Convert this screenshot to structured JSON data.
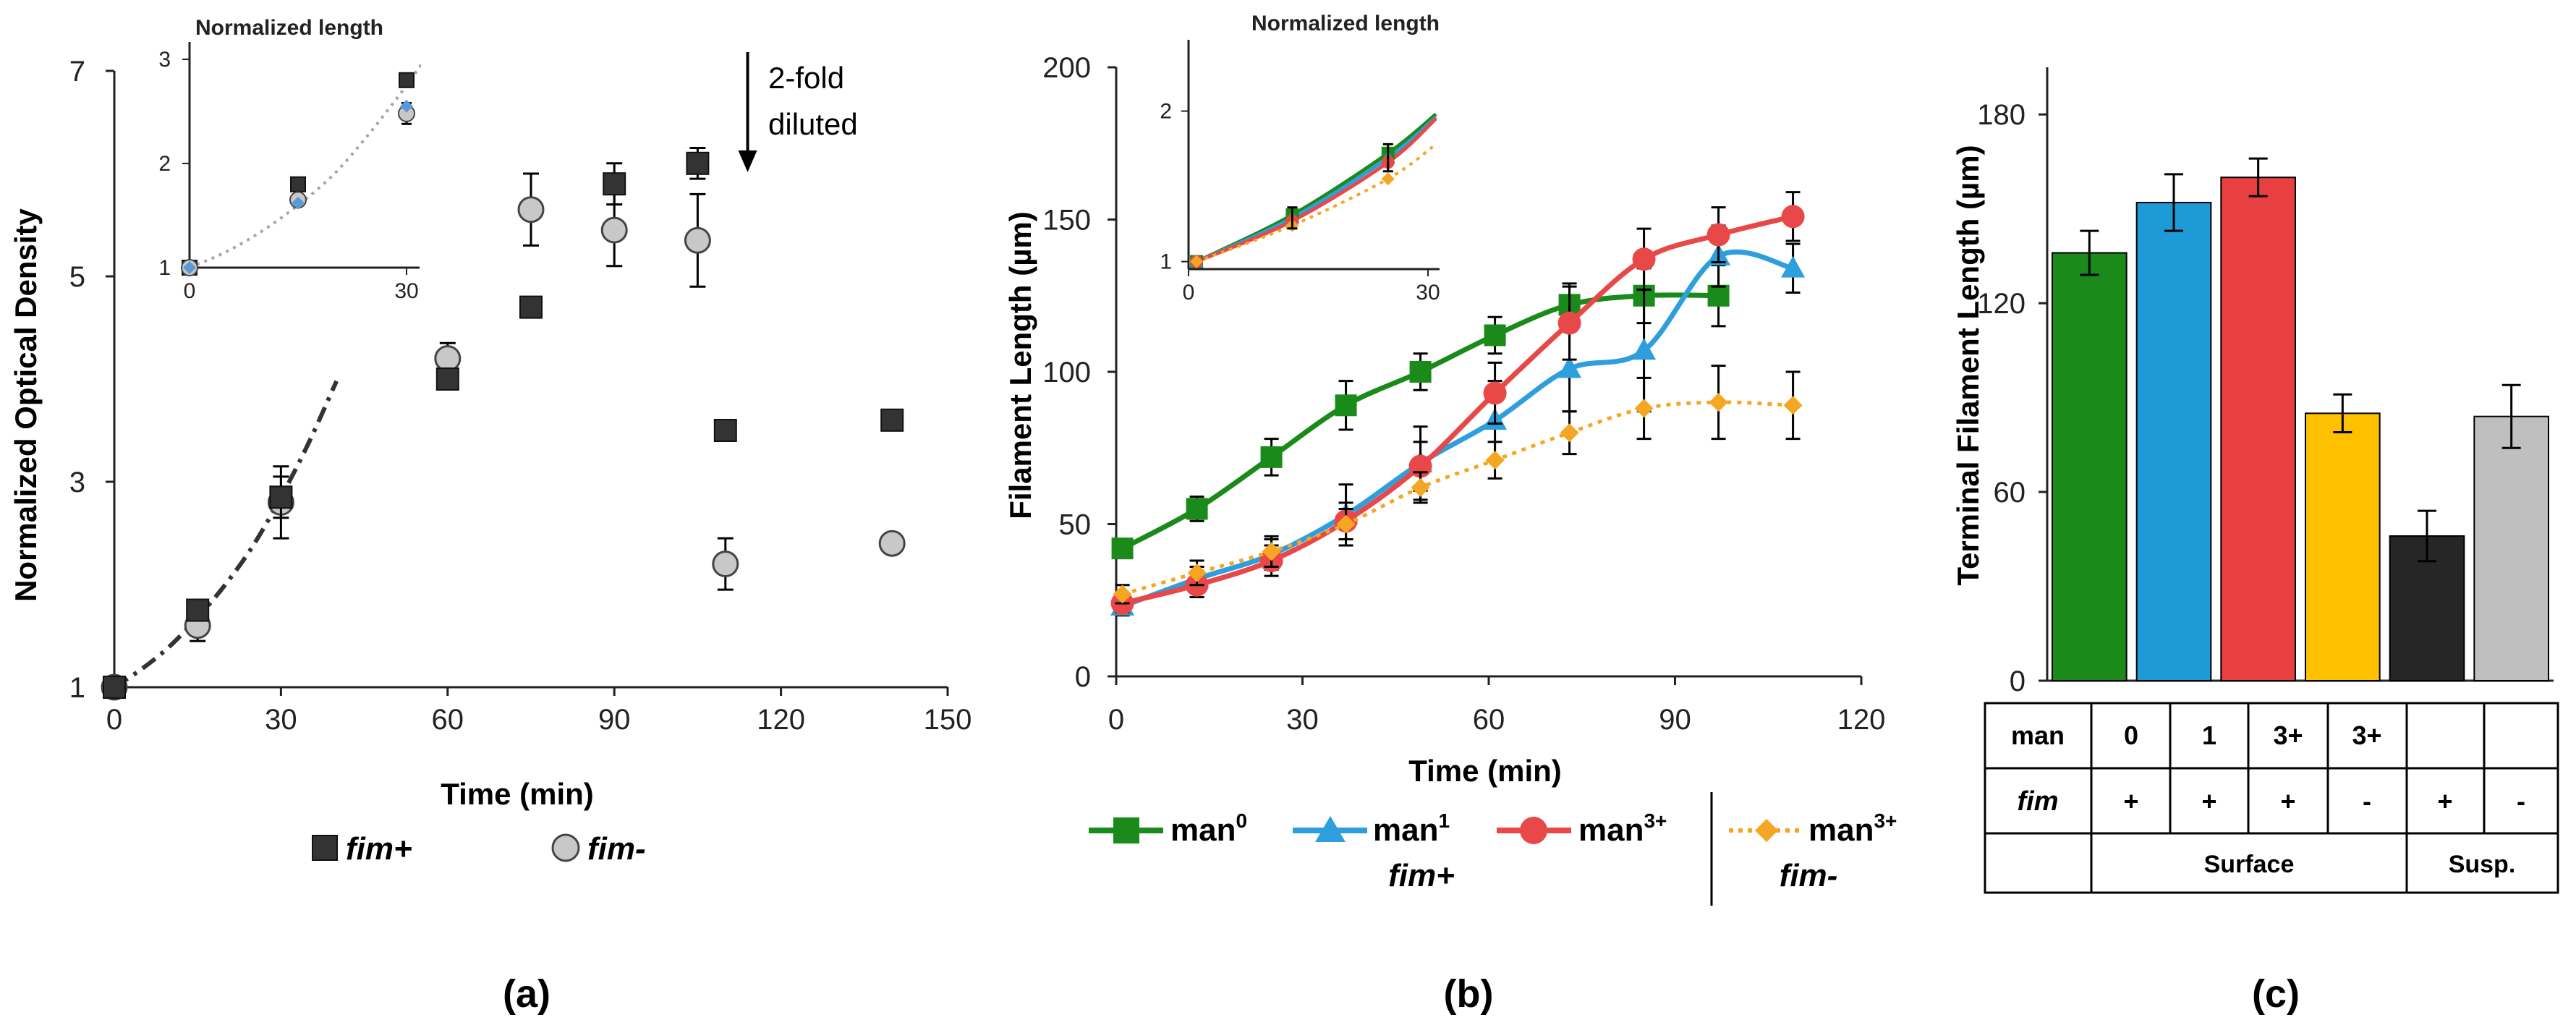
{
  "chart_data": [
    {
      "type": "scatter",
      "panel_label": "(a)",
      "ylabel": "Normalized Optical Density",
      "xlabel": "Time (min)",
      "xlim": [
        0,
        150
      ],
      "ylim": [
        1,
        7
      ],
      "x_ticks": [
        0,
        30,
        60,
        90,
        120,
        150
      ],
      "y_ticks": [
        1,
        3,
        5,
        7
      ],
      "annotation": [
        "2-fold",
        "diluted"
      ],
      "annotation_time": 114,
      "legend": [
        {
          "name": "fim+",
          "marker": "square",
          "color": "#333333"
        },
        {
          "name": "fim-",
          "marker": "circle",
          "color": "#c8c8c8"
        }
      ],
      "series": [
        {
          "name": "fim+",
          "marker": "square",
          "color": "#333333",
          "x": [
            0,
            15,
            30,
            60,
            75,
            90,
            105,
            110,
            140
          ],
          "y": [
            1.0,
            1.75,
            2.85,
            4.0,
            4.7,
            5.9,
            6.1,
            3.5,
            3.6
          ],
          "err": [
            0,
            0.1,
            0.2,
            0,
            0,
            0.2,
            0.15,
            0,
            0
          ]
        },
        {
          "name": "fim-",
          "marker": "circle",
          "color": "#c8c8c8",
          "x": [
            0,
            15,
            30,
            60,
            75,
            90,
            105,
            110,
            140
          ],
          "y": [
            1.0,
            1.6,
            2.8,
            4.2,
            5.65,
            5.45,
            5.35,
            2.2,
            2.4
          ],
          "err": [
            0,
            0.15,
            0.35,
            0.15,
            0.35,
            0.35,
            0.45,
            0.25,
            0
          ]
        }
      ],
      "fit_curve": {
        "style": "dash-dot",
        "color": "#333333",
        "x": [
          0,
          5,
          10,
          15,
          20,
          25,
          30,
          35,
          40
        ],
        "y": [
          1.0,
          1.18,
          1.4,
          1.68,
          2.0,
          2.38,
          2.85,
          3.38,
          3.98
        ]
      },
      "inset": {
        "title": "Normalized length",
        "xlim": [
          0,
          31
        ],
        "ylim": [
          1,
          3
        ],
        "x_ticks": [
          0,
          30
        ],
        "y_ticks": [
          1,
          2,
          3
        ],
        "series": [
          {
            "name": "fim+",
            "marker": "square",
            "color": "#333333",
            "x": [
              0,
              15,
              30
            ],
            "y": [
              1.0,
              1.8,
              2.8
            ]
          },
          {
            "name": "fim-",
            "marker": "circle",
            "color": "#c8c8c8",
            "x": [
              0,
              15,
              30
            ],
            "y": [
              1.0,
              1.65,
              2.48
            ],
            "err": [
              0,
              0,
              0.1
            ]
          },
          {
            "name": "blue",
            "marker": "diamond",
            "color": "#5b9bd5",
            "x": [
              0,
              15,
              30
            ],
            "y": [
              1.0,
              1.62,
              2.55
            ]
          }
        ],
        "fit_curve": {
          "style": "dotted",
          "color": "#a6a6a6",
          "x": [
            0,
            5,
            10,
            15,
            20,
            25,
            30,
            33
          ],
          "y": [
            1.0,
            1.15,
            1.35,
            1.6,
            1.9,
            2.3,
            2.75,
            3.05
          ]
        }
      }
    },
    {
      "type": "line",
      "panel_label": "(b)",
      "ylabel": "Filament Length (µm)",
      "xlabel": "Time (min)",
      "xlim": [
        0,
        120
      ],
      "ylim": [
        0,
        200
      ],
      "x_ticks": [
        0,
        30,
        60,
        90,
        120
      ],
      "y_ticks": [
        0,
        50,
        100,
        150,
        200
      ],
      "group_labels": [
        "fim+",
        "fim-"
      ],
      "series": [
        {
          "name": "man",
          "sup": "0",
          "marker": "square",
          "color": "#1a8a1a",
          "dash": "solid",
          "x": [
            1,
            13,
            25,
            37,
            49,
            61,
            73,
            85,
            97
          ],
          "y": [
            42,
            55,
            72,
            89,
            100,
            112,
            122,
            125,
            125
          ],
          "err": [
            3,
            4,
            6,
            8,
            6,
            6,
            7,
            9,
            10
          ]
        },
        {
          "name": "man",
          "sup": "1",
          "marker": "triangle",
          "color": "#2e9fdc",
          "dash": "solid",
          "x": [
            1,
            13,
            25,
            37,
            49,
            61,
            73,
            85,
            97,
            109
          ],
          "y": [
            23,
            32,
            40,
            53,
            70,
            84,
            101,
            107,
            138,
            134
          ],
          "err": [
            3,
            4,
            5,
            10,
            12,
            13,
            14,
            20,
            10,
            8
          ]
        },
        {
          "name": "man",
          "sup": "3+",
          "marker": "circle",
          "color": "#e84848",
          "dash": "solid",
          "x": [
            1,
            13,
            25,
            37,
            49,
            61,
            73,
            85,
            97,
            109
          ],
          "y": [
            24,
            30,
            38,
            51,
            69,
            93,
            116,
            137,
            145,
            151
          ],
          "err": [
            3,
            4,
            5,
            6,
            8,
            10,
            12,
            10,
            9,
            8
          ]
        },
        {
          "name": "man",
          "sup": "3+",
          "marker": "diamond",
          "color": "#f5a623",
          "dash": "dotted",
          "x": [
            1,
            13,
            25,
            37,
            49,
            61,
            73,
            85,
            97,
            109
          ],
          "y": [
            27,
            34,
            41,
            50,
            62,
            71,
            80,
            88,
            90,
            89
          ],
          "err": [
            3,
            4,
            5,
            5,
            5,
            6,
            7,
            10,
            12,
            11
          ]
        }
      ],
      "inset": {
        "title": "Normalized length",
        "xlim": [
          0,
          31
        ],
        "ylim": [
          0.95,
          2.45
        ],
        "x_ticks": [
          0,
          30
        ],
        "y_ticks": [
          1,
          2
        ],
        "series": [
          {
            "color": "#1a8a1a",
            "marker": "square",
            "dash": "solid",
            "x": [
              1,
              13,
              25,
              31
            ],
            "y": [
              1.0,
              1.31,
              1.72,
              1.98
            ]
          },
          {
            "color": "#2e9fdc",
            "marker": "triangle",
            "dash": "solid",
            "x": [
              1,
              13,
              25,
              31
            ],
            "y": [
              1.0,
              1.29,
              1.69,
              1.96
            ]
          },
          {
            "color": "#e84848",
            "marker": "circle",
            "dash": "solid",
            "x": [
              1,
              13,
              25,
              31
            ],
            "y": [
              1.0,
              1.27,
              1.66,
              1.95
            ]
          },
          {
            "color": "#f5a623",
            "marker": "diamond",
            "dash": "dotted",
            "x": [
              1,
              13,
              25,
              31
            ],
            "y": [
              1.0,
              1.24,
              1.55,
              1.78
            ]
          }
        ]
      }
    },
    {
      "type": "bar",
      "panel_label": "(c)",
      "ylabel": "Terminal Filament Length (µm)",
      "ylim": [
        0,
        195
      ],
      "y_ticks": [
        0,
        60,
        120,
        180
      ],
      "values": [
        136,
        152,
        160,
        85,
        46,
        84
      ],
      "err": [
        7,
        9,
        6,
        6,
        8,
        10
      ],
      "colors": [
        "#1a8a1a",
        "#1e9ad6",
        "#e84040",
        "#ffc000",
        "#262626",
        "#bfbfbf"
      ],
      "table": {
        "rows": [
          {
            "label": "man",
            "cells": [
              "0",
              "1",
              "3+",
              "3+",
              "",
              ""
            ]
          },
          {
            "label": "fim",
            "cells": [
              "+",
              "+",
              "+",
              "-",
              "+",
              "-"
            ]
          }
        ],
        "groups": [
          {
            "label": "Surface",
            "span": 4
          },
          {
            "label": "Susp.",
            "span": 2
          }
        ]
      }
    }
  ]
}
